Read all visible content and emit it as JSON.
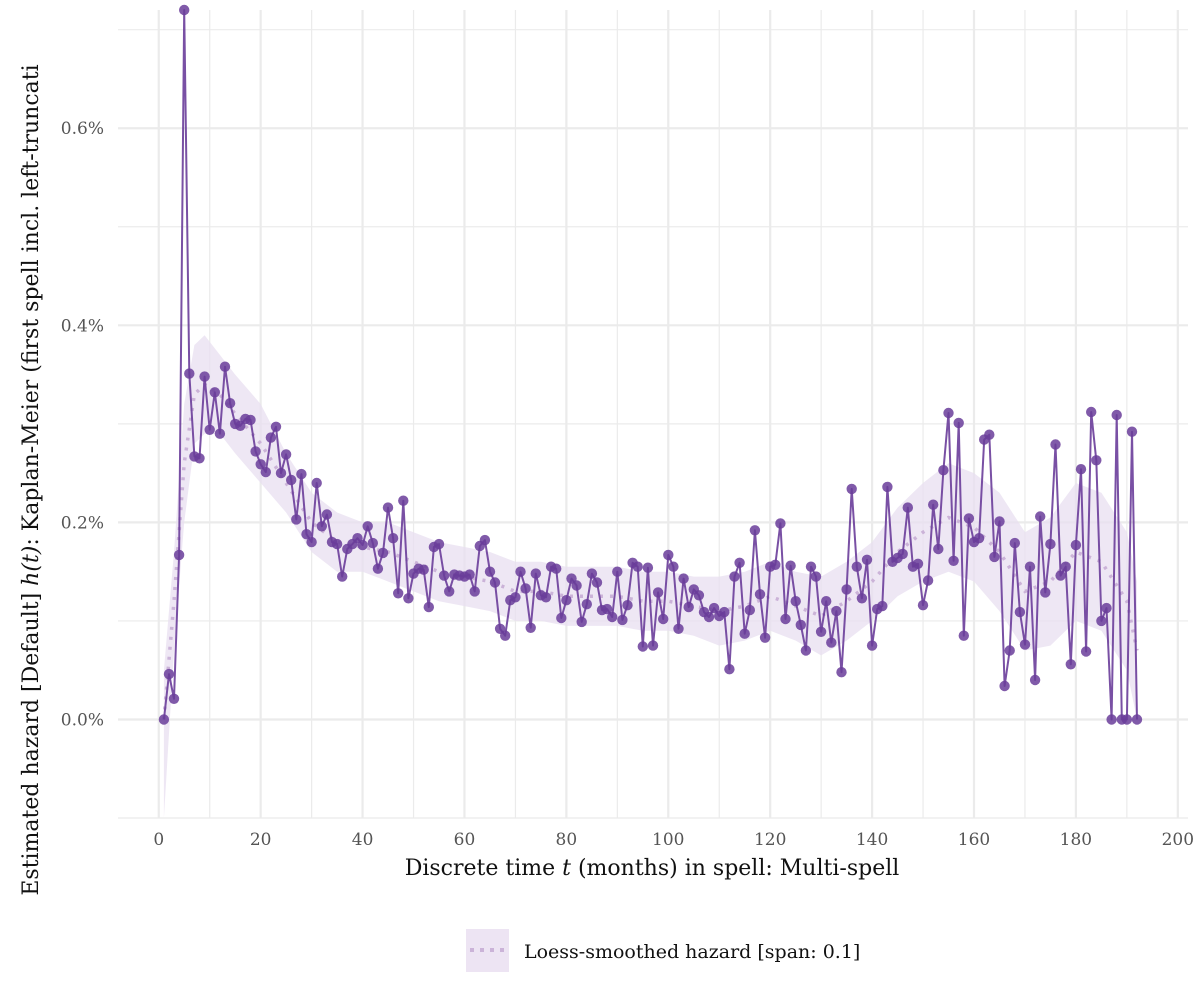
{
  "chart_data": {
    "type": "line",
    "xlabel_pre": "Discrete time ",
    "xlabel_var": "t",
    "xlabel_post": " (months) in spell: Multi-spell",
    "ylabel_pre": "Estimated hazard [Default] ",
    "ylabel_var": "h(t)",
    "ylabel_post": ":  Kaplan-Meier (first spell incl. left-truncati",
    "xlim": [
      -8,
      202
    ],
    "ylim": [
      -0.1,
      0.72
    ],
    "x_ticks": [
      0,
      20,
      40,
      60,
      80,
      100,
      120,
      140,
      160,
      180,
      200
    ],
    "x_tick_labels": [
      "0",
      "20",
      "40",
      "60",
      "80",
      "100",
      "120",
      "140",
      "160",
      "180",
      "200"
    ],
    "y_ticks": [
      0,
      0.2,
      0.4,
      0.6
    ],
    "y_tick_labels": [
      "0.0%",
      "0.2%",
      "0.4%",
      "0.6%"
    ],
    "grid": true,
    "legend_position": "bottom",
    "colors": {
      "line": "#6a3d9a",
      "point": "#6a3d9a",
      "smooth": "#cbb3d8",
      "ribbon": "#e8dff0",
      "grid": "#ebebeb"
    },
    "series": [
      {
        "x": [
          1,
          2,
          3,
          4,
          5,
          6,
          7,
          8,
          9,
          10,
          11,
          12,
          13,
          14,
          15,
          16,
          17,
          18,
          19,
          20,
          21,
          22,
          23,
          24,
          25,
          26,
          27,
          28,
          29,
          30,
          31,
          32,
          33,
          34,
          35,
          36,
          37,
          38,
          39,
          40,
          41,
          42,
          43,
          44,
          45,
          46,
          47,
          48,
          49,
          50,
          51,
          52,
          53,
          54,
          55,
          56,
          57,
          58,
          59,
          60,
          61,
          62,
          63,
          64,
          65,
          66,
          67,
          68,
          69,
          70,
          71,
          72,
          73,
          74,
          75,
          76,
          77,
          78,
          79,
          80,
          81,
          82,
          83,
          84,
          85,
          86,
          87,
          88,
          89,
          90,
          91,
          92,
          93,
          94,
          95,
          96,
          97,
          98,
          99,
          100,
          101,
          102,
          103,
          104,
          105,
          106,
          107,
          108,
          109,
          110,
          111,
          112,
          113,
          114,
          115,
          116,
          117,
          118,
          119,
          120,
          121,
          122,
          123,
          124,
          125,
          126,
          127,
          128,
          129,
          130,
          131,
          132,
          133,
          134,
          135,
          136,
          137,
          138,
          139,
          140,
          141,
          142,
          143,
          144,
          145,
          146,
          147,
          148,
          149,
          150,
          151,
          152,
          153,
          154,
          155,
          156,
          157,
          158,
          159,
          160,
          161,
          162,
          163,
          164,
          165,
          166,
          167,
          168,
          169,
          170,
          171,
          172,
          173,
          174,
          175,
          176,
          177,
          178,
          179,
          180,
          181,
          182,
          183,
          184,
          185,
          186,
          187,
          188,
          189,
          190,
          191,
          192
        ],
        "values": [
          0.0,
          0.046,
          0.021,
          0.167,
          0.72,
          0.351,
          0.267,
          0.265,
          0.348,
          0.294,
          0.332,
          0.29,
          0.358,
          0.321,
          0.3,
          0.298,
          0.305,
          0.304,
          0.272,
          0.259,
          0.251,
          0.286,
          0.297,
          0.25,
          0.269,
          0.243,
          0.203,
          0.249,
          0.188,
          0.18,
          0.24,
          0.196,
          0.208,
          0.18,
          0.178,
          0.145,
          0.173,
          0.178,
          0.184,
          0.177,
          0.196,
          0.179,
          0.153,
          0.169,
          0.215,
          0.184,
          0.128,
          0.222,
          0.123,
          0.148,
          0.153,
          0.152,
          0.114,
          0.175,
          0.178,
          0.146,
          0.13,
          0.147,
          0.146,
          0.145,
          0.147,
          0.13,
          0.176,
          0.182,
          0.15,
          0.139,
          0.092,
          0.085,
          0.121,
          0.124,
          0.15,
          0.133,
          0.093,
          0.148,
          0.126,
          0.124,
          0.155,
          0.153,
          0.103,
          0.121,
          0.143,
          0.136,
          0.099,
          0.117,
          0.148,
          0.139,
          0.111,
          0.112,
          0.104,
          0.15,
          0.101,
          0.116,
          0.159,
          0.155,
          0.074,
          0.154,
          0.075,
          0.129,
          0.102,
          0.167,
          0.155,
          0.092,
          0.143,
          0.114,
          0.132,
          0.126,
          0.109,
          0.104,
          0.113,
          0.105,
          0.109,
          0.051,
          0.145,
          0.159,
          0.087,
          0.111,
          0.192,
          0.127,
          0.083,
          0.155,
          0.157,
          0.199,
          0.102,
          0.156,
          0.12,
          0.096,
          0.07,
          0.155,
          0.145,
          0.089,
          0.12,
          0.078,
          0.11,
          0.048,
          0.132,
          0.234,
          0.155,
          0.123,
          0.162,
          0.075,
          0.112,
          0.115,
          0.236,
          0.16,
          0.164,
          0.168,
          0.215,
          0.155,
          0.158,
          0.116,
          0.141,
          0.218,
          0.173,
          0.253,
          0.311,
          0.161,
          0.301,
          0.085,
          0.204,
          0.18,
          0.184,
          0.284,
          0.289,
          0.165,
          0.201,
          0.034,
          0.07,
          0.179,
          0.109,
          0.076,
          0.155,
          0.04,
          0.206,
          0.129,
          0.178,
          0.279,
          0.146,
          0.155,
          0.056,
          0.177,
          0.254,
          0.069,
          0.312,
          0.263,
          0.1,
          0.113,
          0.0,
          0.309,
          0.0,
          0.0,
          0.292,
          0.0
        ]
      }
    ],
    "smooth": {
      "name": "Loess-smoothed hazard [span: 0.1]",
      "x": [
        1,
        3,
        5,
        7,
        9,
        12,
        15,
        20,
        25,
        30,
        35,
        40,
        45,
        50,
        55,
        60,
        65,
        70,
        75,
        80,
        85,
        90,
        95,
        100,
        105,
        110,
        115,
        120,
        125,
        130,
        135,
        140,
        145,
        150,
        155,
        160,
        165,
        170,
        175,
        180,
        185,
        190,
        192
      ],
      "values": [
        0.0,
        0.12,
        0.26,
        0.33,
        0.34,
        0.33,
        0.31,
        0.28,
        0.24,
        0.2,
        0.18,
        0.175,
        0.17,
        0.16,
        0.15,
        0.145,
        0.14,
        0.13,
        0.13,
        0.125,
        0.125,
        0.125,
        0.12,
        0.12,
        0.115,
        0.11,
        0.115,
        0.125,
        0.115,
        0.105,
        0.12,
        0.14,
        0.17,
        0.19,
        0.205,
        0.195,
        0.17,
        0.13,
        0.14,
        0.17,
        0.16,
        0.12,
        0.07
      ],
      "ribbon_lower": [
        -0.1,
        0.07,
        0.2,
        0.28,
        0.29,
        0.29,
        0.27,
        0.24,
        0.21,
        0.17,
        0.15,
        0.15,
        0.14,
        0.13,
        0.12,
        0.115,
        0.11,
        0.1,
        0.1,
        0.095,
        0.095,
        0.095,
        0.09,
        0.09,
        0.085,
        0.075,
        0.08,
        0.09,
        0.08,
        0.065,
        0.08,
        0.1,
        0.125,
        0.14,
        0.15,
        0.14,
        0.11,
        0.07,
        0.075,
        0.1,
        0.09,
        0.05,
        0.0
      ],
      "ribbon_upper": [
        0.05,
        0.17,
        0.32,
        0.38,
        0.39,
        0.37,
        0.35,
        0.32,
        0.27,
        0.23,
        0.21,
        0.2,
        0.2,
        0.19,
        0.18,
        0.175,
        0.17,
        0.16,
        0.16,
        0.155,
        0.155,
        0.155,
        0.15,
        0.15,
        0.145,
        0.145,
        0.15,
        0.16,
        0.15,
        0.145,
        0.16,
        0.18,
        0.215,
        0.24,
        0.26,
        0.25,
        0.23,
        0.19,
        0.205,
        0.24,
        0.23,
        0.19,
        0.14
      ]
    }
  }
}
